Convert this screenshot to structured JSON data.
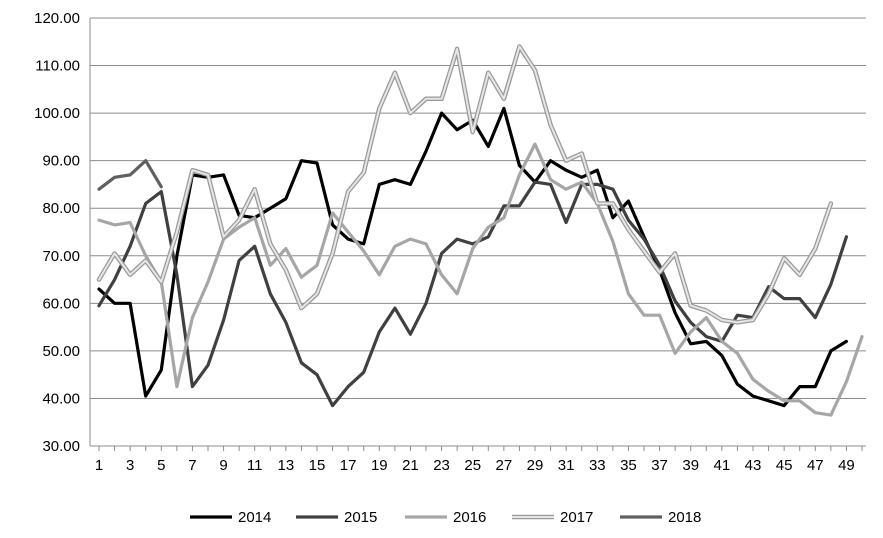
{
  "chart_data": {
    "type": "line",
    "title": "",
    "xlabel": "",
    "ylabel": "",
    "ylim": [
      30,
      120
    ],
    "yticks": [
      "30.00",
      "40.00",
      "50.00",
      "60.00",
      "70.00",
      "80.00",
      "90.00",
      "100.00",
      "110.00",
      "120.00"
    ],
    "yticks_values": [
      30,
      40,
      50,
      60,
      70,
      80,
      90,
      100,
      110,
      120
    ],
    "xlim": [
      1,
      50
    ],
    "xticks": [
      "1",
      "3",
      "5",
      "7",
      "9",
      "11",
      "13",
      "15",
      "17",
      "19",
      "21",
      "23",
      "25",
      "27",
      "29",
      "31",
      "33",
      "35",
      "37",
      "39",
      "41",
      "43",
      "45",
      "47",
      "49"
    ],
    "xticks_values": [
      1,
      3,
      5,
      7,
      9,
      11,
      13,
      15,
      17,
      19,
      21,
      23,
      25,
      27,
      29,
      31,
      33,
      35,
      37,
      39,
      41,
      43,
      45,
      47,
      49
    ],
    "grid": "horizontal",
    "legend": "bottom",
    "series": [
      {
        "name": "2014",
        "color": "#000000",
        "x": [
          1,
          2,
          3,
          4,
          5,
          6,
          7,
          8,
          9,
          10,
          11,
          12,
          13,
          14,
          15,
          16,
          17,
          18,
          19,
          20,
          21,
          22,
          23,
          24,
          25,
          26,
          27,
          28,
          29,
          30,
          31,
          32,
          33,
          34,
          35,
          36,
          37,
          38,
          39,
          40,
          41,
          42,
          43,
          44,
          45,
          46,
          47,
          48,
          49
        ],
        "y": [
          63,
          60,
          60,
          40.5,
          46,
          70,
          87,
          86.5,
          87,
          78.5,
          78,
          80,
          82,
          90,
          89.5,
          76.5,
          73.5,
          72.5,
          85,
          86,
          85,
          92,
          100,
          96.5,
          98.5,
          93,
          101,
          89,
          85.5,
          90,
          88,
          86.5,
          88,
          78,
          81.5,
          74,
          67,
          58,
          51.5,
          52,
          49,
          43,
          40.5,
          39.5,
          38.5,
          42.5,
          42.5,
          50,
          52
        ]
      },
      {
        "name": "2015",
        "color": "#404040",
        "x": [
          1,
          2,
          3,
          4,
          5,
          6,
          7,
          8,
          9,
          10,
          11,
          12,
          13,
          14,
          15,
          16,
          17,
          18,
          19,
          20,
          21,
          22,
          23,
          24,
          25,
          26,
          27,
          28,
          29,
          30,
          31,
          32,
          33,
          34,
          35,
          36,
          37,
          38,
          39,
          40,
          41,
          42,
          43,
          44,
          45,
          46,
          47,
          48,
          49
        ],
        "y": [
          59.5,
          65,
          72,
          81,
          83.5,
          66,
          42.5,
          47,
          56.5,
          69,
          72,
          62,
          56,
          47.5,
          45,
          38.5,
          42.5,
          45.5,
          54,
          59,
          53.5,
          60,
          70.5,
          73.5,
          72.5,
          74,
          80.5,
          80.5,
          85.5,
          85,
          77,
          85,
          85,
          84,
          77.5,
          73.5,
          68,
          60.5,
          56,
          53,
          52,
          57.5,
          57,
          63.5,
          61,
          61,
          57,
          64,
          74
        ]
      },
      {
        "name": "2016",
        "color": "#a6a6a6",
        "x": [
          1,
          2,
          3,
          4,
          5,
          6,
          7,
          8,
          9,
          10,
          11,
          12,
          13,
          14,
          15,
          16,
          17,
          18,
          19,
          20,
          21,
          22,
          23,
          24,
          25,
          26,
          27,
          28,
          29,
          30,
          31,
          32,
          33,
          34,
          35,
          36,
          37,
          38,
          39,
          40,
          41,
          42,
          43,
          44,
          45,
          46,
          47,
          48,
          49,
          50
        ],
        "y": [
          77.5,
          76.5,
          77,
          70,
          64.5,
          42.5,
          57,
          64.5,
          73.5,
          76,
          78,
          68,
          71.5,
          65.5,
          68,
          79,
          75,
          71,
          66,
          72,
          73.5,
          72.5,
          66,
          62,
          71.5,
          76,
          78,
          87,
          93.5,
          86,
          84,
          85.5,
          81,
          73,
          62,
          57.5,
          57.5,
          49.5,
          54,
          57,
          52,
          49.5,
          44,
          41.5,
          39.5,
          39.5,
          37,
          36.5,
          43.5,
          53
        ]
      },
      {
        "name": "2017",
        "color": "#c8c8c8",
        "x": [
          1,
          2,
          3,
          4,
          5,
          6,
          7,
          8,
          9,
          10,
          11,
          12,
          13,
          14,
          15,
          16,
          17,
          18,
          19,
          20,
          21,
          22,
          23,
          24,
          25,
          26,
          27,
          28,
          29,
          30,
          31,
          32,
          33,
          34,
          35,
          36,
          37,
          38,
          39,
          40,
          41,
          42,
          43,
          44,
          45,
          46,
          47,
          48
        ],
        "y": [
          65,
          70.5,
          66,
          69,
          64.5,
          75,
          88,
          87,
          74,
          77.5,
          84,
          72.5,
          67,
          59,
          62,
          70.5,
          83.5,
          87.5,
          101,
          108.5,
          100,
          103,
          103,
          113.5,
          96,
          108.5,
          103,
          114,
          109,
          97.5,
          90,
          91.5,
          81,
          81,
          75.5,
          71,
          66.5,
          70.5,
          59.5,
          58.5,
          56.5,
          56,
          56.5,
          62,
          69.5,
          66,
          71.5,
          81
        ]
      },
      {
        "name": "2018",
        "color": "#606060",
        "x": [
          1,
          2,
          3,
          4,
          5
        ],
        "y": [
          84,
          86.5,
          87,
          90,
          84.5
        ]
      }
    ]
  }
}
